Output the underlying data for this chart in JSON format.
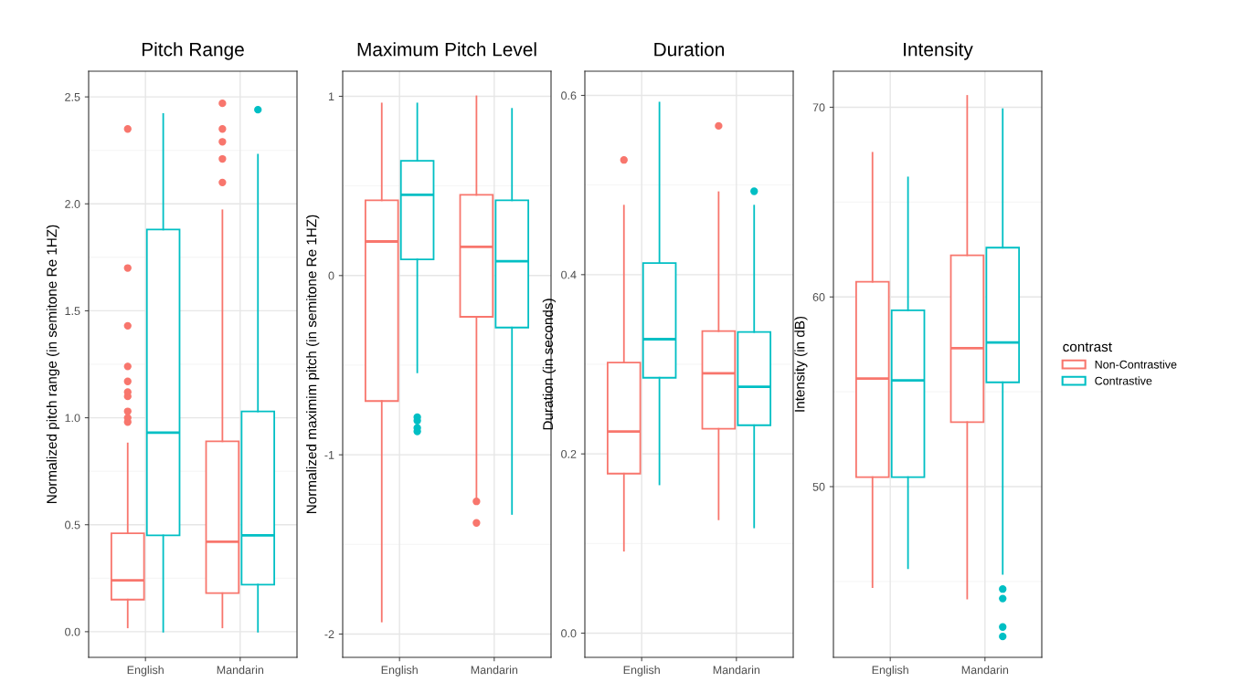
{
  "chart_data": [
    {
      "type": "box",
      "title": "Pitch Range",
      "ylabel": "Normalized pitch range (in semitone Re 1HZ)",
      "categories": [
        "English",
        "Mandarin"
      ],
      "ylim": [
        -0.12,
        2.62
      ],
      "yticks": [
        {
          "value": 0,
          "label": "0.0"
        },
        {
          "value": 0.5,
          "label": "0.5"
        },
        {
          "value": 1,
          "label": "1.0"
        },
        {
          "value": 1.5,
          "label": "1.5"
        },
        {
          "value": 2,
          "label": "2.0"
        },
        {
          "value": 2.5,
          "label": "2.5"
        }
      ],
      "grid": true,
      "series": [
        {
          "color": "#f8766d",
          "boxes": [
            {
              "low": 0.02,
              "q1": 0.15,
              "median": 0.24,
              "q3": 0.46,
              "high": 0.88,
              "outliers": [
                0.98,
                1.0,
                1.03,
                1.1,
                1.12,
                1.17,
                1.24,
                1.43,
                1.7,
                2.35
              ]
            },
            {
              "low": 0.02,
              "q1": 0.18,
              "median": 0.42,
              "q3": 0.89,
              "high": 1.97,
              "outliers": [
                2.1,
                2.21,
                2.29,
                2.35,
                2.47
              ]
            }
          ]
        },
        {
          "color": "#00bfc4",
          "boxes": [
            {
              "low": 0.0,
              "q1": 0.45,
              "median": 0.93,
              "q3": 1.88,
              "high": 2.42
            },
            {
              "low": 0.0,
              "q1": 0.22,
              "median": 0.45,
              "q3": 1.03,
              "high": 2.23,
              "outliers": [
                2.44
              ]
            }
          ]
        }
      ]
    },
    {
      "type": "box",
      "title": "Maximum Pitch Level",
      "ylabel": "Normalized maximim pitch (in semitone Re 1HZ)",
      "categories": [
        "English",
        "Mandarin"
      ],
      "ylim": [
        -2.13,
        1.14
      ],
      "yticks": [
        -2,
        -1,
        0,
        1
      ],
      "grid": true,
      "series": [
        {
          "color": "#f8766d",
          "boxes": [
            {
              "low": -1.93,
              "q1": -0.7,
              "median": 0.19,
              "q3": 0.42,
              "high": 0.96
            },
            {
              "low": -1.24,
              "q1": -0.23,
              "median": 0.16,
              "q3": 0.45,
              "high": 1.0,
              "outliers": [
                -1.26,
                -1.38
              ]
            }
          ]
        },
        {
          "color": "#00bfc4",
          "boxes": [
            {
              "low": -0.54,
              "q1": 0.09,
              "median": 0.45,
              "q3": 0.64,
              "high": 0.96,
              "outliers": [
                -0.79,
                -0.81,
                -0.85,
                -0.87
              ]
            },
            {
              "low": -1.33,
              "q1": -0.29,
              "median": 0.08,
              "q3": 0.42,
              "high": 0.93
            }
          ]
        }
      ]
    },
    {
      "type": "box",
      "title": "Duration",
      "ylabel": "Duration (in seconds)",
      "categories": [
        "English",
        "Mandarin"
      ],
      "ylim": [
        -0.027,
        0.627
      ],
      "yticks": [
        {
          "value": 0,
          "label": "0.0"
        },
        {
          "value": 0.2,
          "label": "0.2"
        },
        {
          "value": 0.4,
          "label": "0.4"
        },
        {
          "value": 0.6,
          "label": "0.6"
        }
      ],
      "grid": true,
      "series": [
        {
          "color": "#f8766d",
          "boxes": [
            {
              "low": 0.092,
              "q1": 0.178,
              "median": 0.225,
              "q3": 0.302,
              "high": 0.477,
              "outliers": [
                0.528
              ]
            },
            {
              "low": 0.127,
              "q1": 0.228,
              "median": 0.29,
              "q3": 0.337,
              "high": 0.492,
              "outliers": [
                0.566
              ]
            }
          ]
        },
        {
          "color": "#00bfc4",
          "boxes": [
            {
              "low": 0.166,
              "q1": 0.285,
              "median": 0.328,
              "q3": 0.413,
              "high": 0.592
            },
            {
              "low": 0.118,
              "q1": 0.232,
              "median": 0.275,
              "q3": 0.336,
              "high": 0.477,
              "outliers": [
                0.493
              ]
            }
          ]
        }
      ]
    },
    {
      "type": "box",
      "title": "Intensity",
      "ylabel": "Intensity (in dB)",
      "categories": [
        "English",
        "Mandarin"
      ],
      "ylim": [
        41.0,
        71.9
      ],
      "yticks": [
        50,
        60,
        70
      ],
      "grid": true,
      "legend": "right",
      "legend_title": "contrast",
      "series": [
        {
          "name": "Non-Contrastive",
          "color": "#f8766d",
          "boxes": [
            {
              "low": 44.7,
              "q1": 50.5,
              "median": 55.7,
              "q3": 60.8,
              "high": 67.6
            },
            {
              "low": 44.1,
              "q1": 53.4,
              "median": 57.3,
              "q3": 62.2,
              "high": 70.6
            }
          ]
        },
        {
          "name": "Contrastive",
          "color": "#00bfc4",
          "boxes": [
            {
              "low": 45.7,
              "q1": 50.5,
              "median": 55.6,
              "q3": 59.3,
              "high": 66.3
            },
            {
              "low": 45.4,
              "q1": 55.5,
              "median": 57.6,
              "q3": 62.6,
              "high": 69.9,
              "outliers": [
                44.6,
                44.1,
                42.6,
                42.1
              ]
            }
          ]
        }
      ]
    }
  ]
}
